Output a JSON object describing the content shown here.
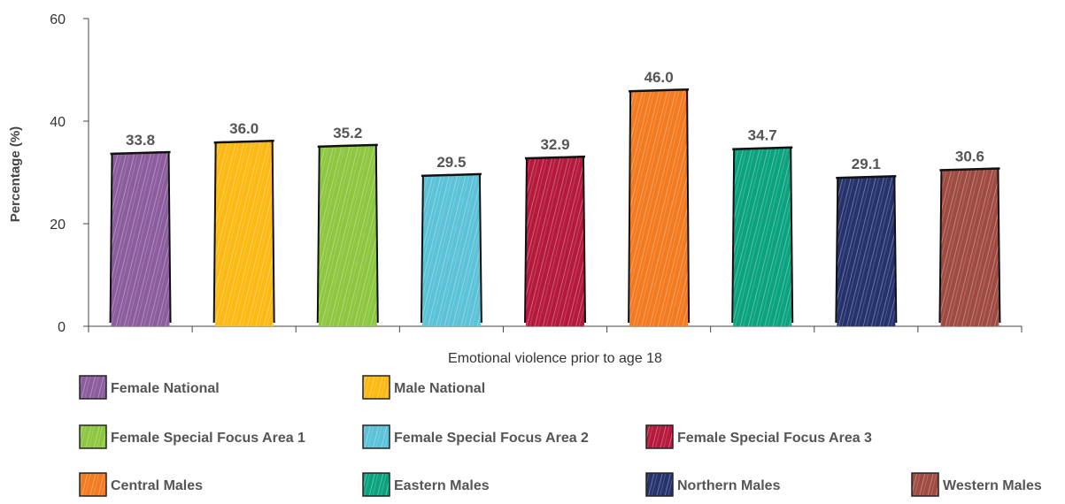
{
  "chart_data": {
    "type": "bar",
    "xlabel": "Emotional violence prior to age 18",
    "ylabel": "Percentage (%)",
    "ylim": [
      0,
      60
    ],
    "yticks": [
      0,
      20,
      40,
      60
    ],
    "grid": false,
    "legend_position": "bottom",
    "series": [
      {
        "name": "Female National",
        "value": 33.8,
        "label": "33.8",
        "color": "#8B5C9E"
      },
      {
        "name": "Male National",
        "value": 36.0,
        "label": "36.0",
        "color": "#FDB913"
      },
      {
        "name": "Female Special Focus Area 1",
        "value": 35.2,
        "label": "35.2",
        "color": "#8DC63F"
      },
      {
        "name": "Female Special Focus Area 2",
        "value": 29.5,
        "label": "29.5",
        "color": "#5BC2D8"
      },
      {
        "name": "Female Special Focus Area 3",
        "value": 32.9,
        "label": "32.9",
        "color": "#B5193B"
      },
      {
        "name": "Central Males",
        "value": 46.0,
        "label": "46.0",
        "color": "#F47A20"
      },
      {
        "name": "Eastern Males",
        "value": 34.7,
        "label": "34.7",
        "color": "#0BA37F"
      },
      {
        "name": "Northern Males",
        "value": 29.1,
        "label": "29.1",
        "color": "#24336E"
      },
      {
        "name": "Western Males",
        "value": 30.6,
        "label": "30.6",
        "color": "#A04B42"
      }
    ]
  }
}
